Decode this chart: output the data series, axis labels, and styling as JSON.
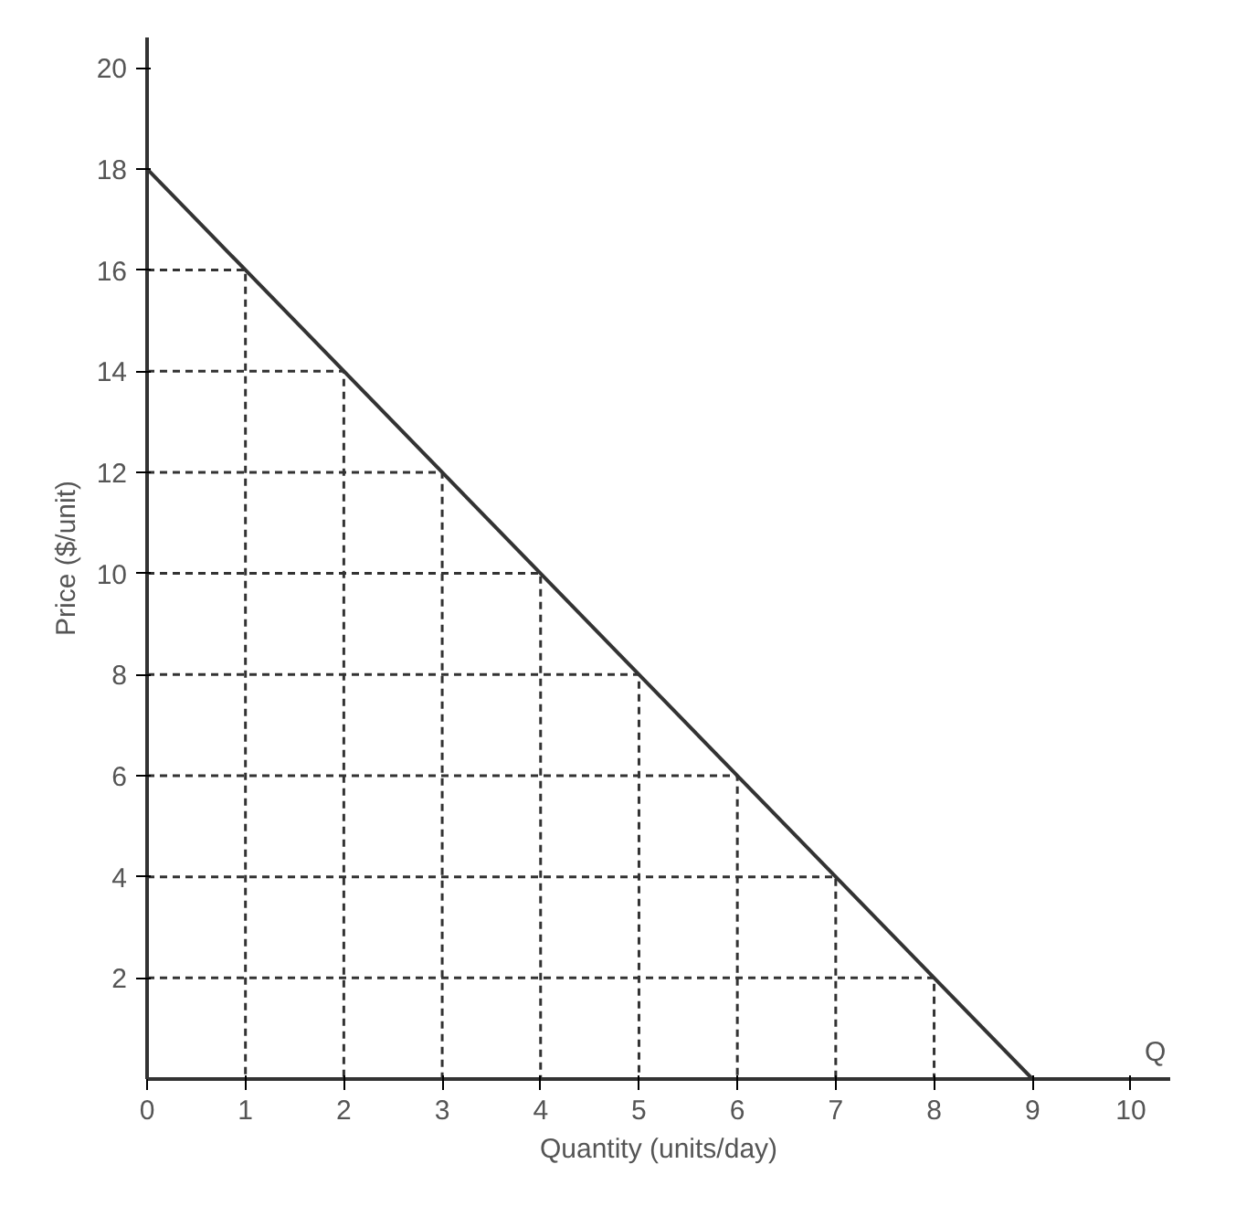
{
  "chart_data": {
    "type": "line",
    "xlabel": "Quantity (units/day)",
    "ylabel": "Price ($/unit)",
    "x": [
      0,
      9
    ],
    "series": [
      {
        "color": "#333333",
        "values": [
          18,
          0
        ]
      },
      {
        "color": "#333333",
        "type": "line",
        "line_style": "dashed",
        "x": [
          0,
          1,
          1
        ],
        "values": [
          16,
          16,
          0
        ]
      },
      {
        "color": "#333333",
        "type": "line",
        "line_style": "dashed",
        "x": [
          0,
          2,
          2
        ],
        "values": [
          14,
          14,
          0
        ]
      },
      {
        "color": "#333333",
        "type": "line",
        "line_style": "dashed",
        "x": [
          0,
          3,
          3
        ],
        "values": [
          12,
          12,
          0
        ]
      },
      {
        "color": "#333333",
        "type": "line",
        "line_style": "dashed",
        "x": [
          0,
          4,
          4
        ],
        "values": [
          10,
          10,
          0
        ]
      },
      {
        "color": "#333333",
        "type": "line",
        "line_style": "dashed",
        "x": [
          0,
          5,
          5
        ],
        "values": [
          8,
          8,
          0
        ]
      },
      {
        "color": "#333333",
        "type": "line",
        "line_style": "dashed",
        "x": [
          0,
          6,
          6
        ],
        "values": [
          6,
          6,
          0
        ]
      },
      {
        "color": "#333333",
        "type": "line",
        "line_style": "dashed",
        "x": [
          0,
          7,
          7
        ],
        "values": [
          4,
          4,
          0
        ]
      },
      {
        "color": "#333333",
        "type": "line",
        "line_style": "dashed",
        "x": [
          0,
          8,
          8
        ],
        "values": [
          2,
          2,
          0
        ]
      }
    ],
    "xlim": [
      0,
      10.4
    ],
    "ylim": [
      0,
      20.6
    ],
    "xticks": [
      0,
      1,
      2,
      3,
      4,
      5,
      6,
      7,
      8,
      9,
      10
    ],
    "yticks": [
      2,
      4,
      6,
      8,
      10,
      12,
      14,
      16,
      18,
      20
    ],
    "annotations": [
      "Q"
    ],
    "grid": false,
    "marker": "none"
  }
}
